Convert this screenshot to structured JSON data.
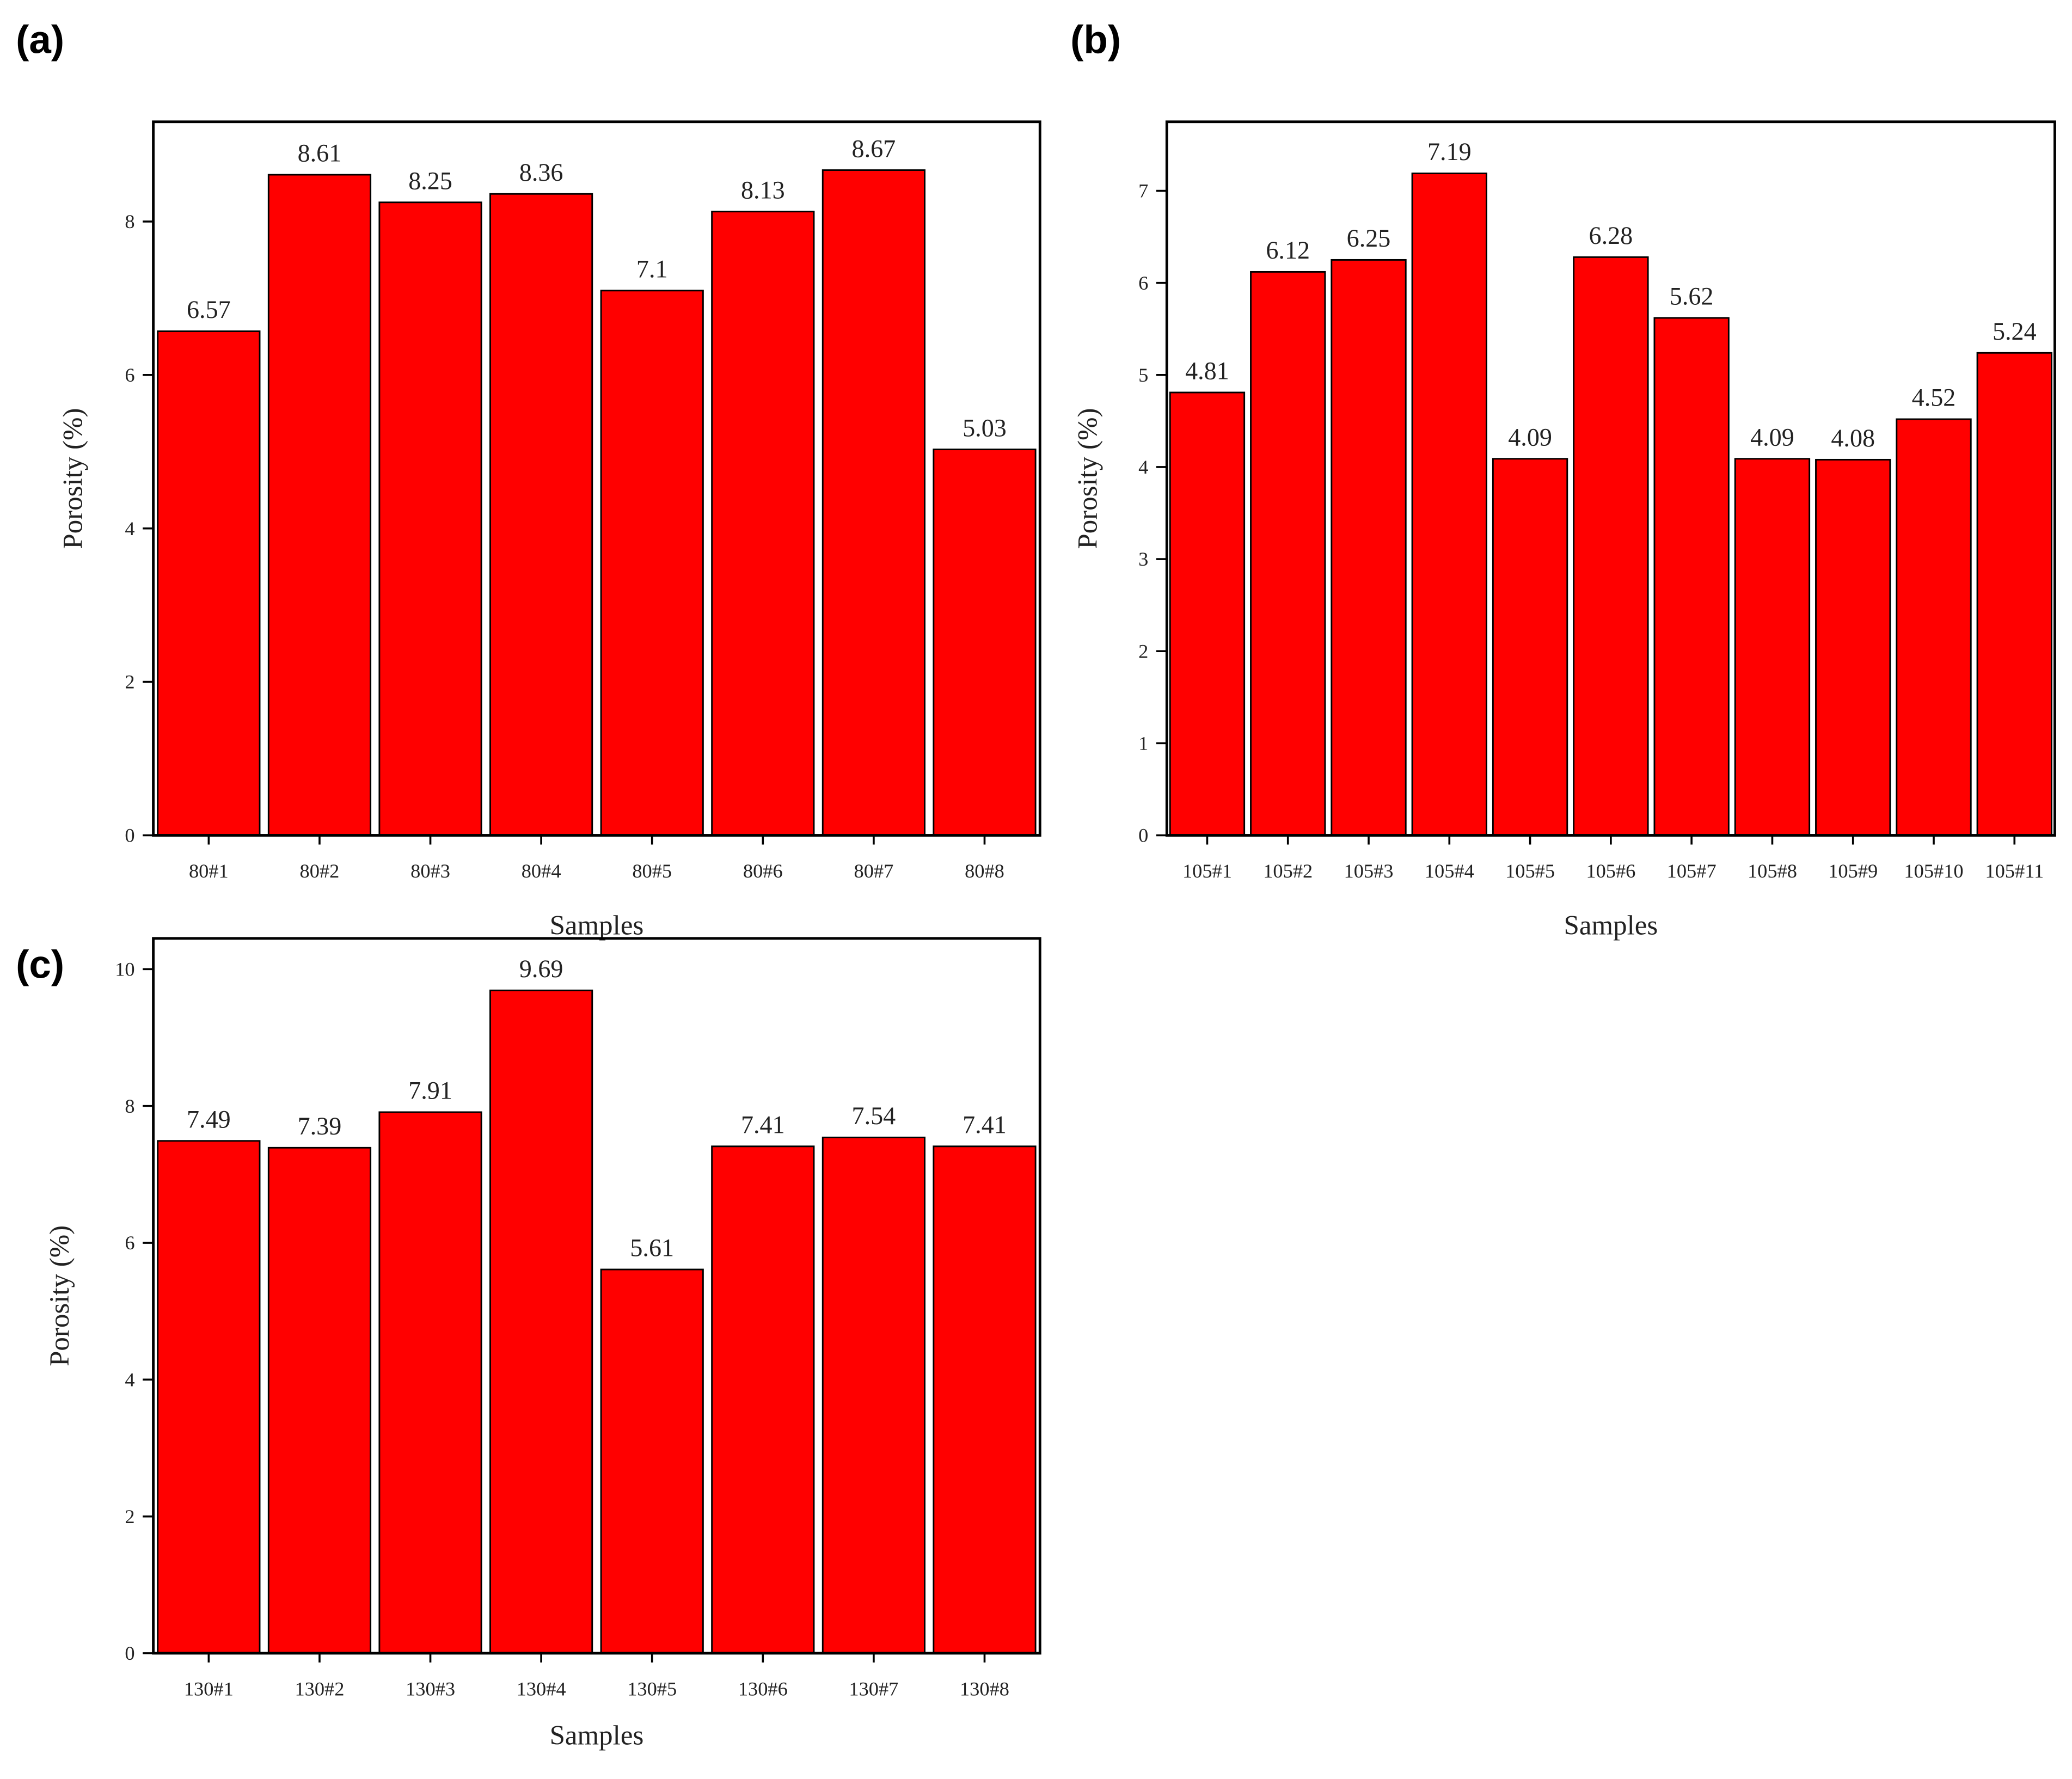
{
  "chart_data": [
    {
      "type": "bar",
      "panel_label": "(a)",
      "y_label": "Porosity (%)",
      "x_label": "Samples",
      "categories": [
        "80#1",
        "80#2",
        "80#3",
        "80#4",
        "80#5",
        "80#6",
        "80#7",
        "80#8"
      ],
      "values": [
        6.57,
        8.61,
        8.25,
        8.36,
        7.1,
        8.13,
        8.67,
        5.03
      ],
      "color": "#ff0000",
      "ylim": [
        0,
        9.3
      ],
      "yticks": [
        0,
        2,
        4,
        6,
        8
      ]
    },
    {
      "type": "bar",
      "panel_label": "(b)",
      "y_label": "Porosity (%)",
      "x_label": "Samples",
      "categories": [
        "105#1",
        "105#2",
        "105#3",
        "105#4",
        "105#5",
        "105#6",
        "105#7",
        "105#8",
        "105#9",
        "105#10",
        "105#11"
      ],
      "values": [
        4.81,
        6.12,
        6.25,
        7.19,
        4.09,
        6.28,
        5.62,
        4.09,
        4.08,
        4.52,
        5.24
      ],
      "color": "#ff0000",
      "ylim": [
        0,
        7.75
      ],
      "yticks": [
        0,
        1,
        2,
        3,
        4,
        5,
        6,
        7
      ]
    },
    {
      "type": "bar",
      "panel_label": "(c)",
      "y_label": "Porosity (%)",
      "x_label": "Samples",
      "categories": [
        "130#1",
        "130#2",
        "130#3",
        "130#4",
        "130#5",
        "130#6",
        "130#7",
        "130#8"
      ],
      "values": [
        7.49,
        7.39,
        7.91,
        9.69,
        5.61,
        7.41,
        7.54,
        7.41
      ],
      "color": "#ff0000",
      "ylim": [
        0,
        10.45
      ],
      "yticks": [
        0,
        2,
        4,
        6,
        8,
        10
      ]
    }
  ]
}
